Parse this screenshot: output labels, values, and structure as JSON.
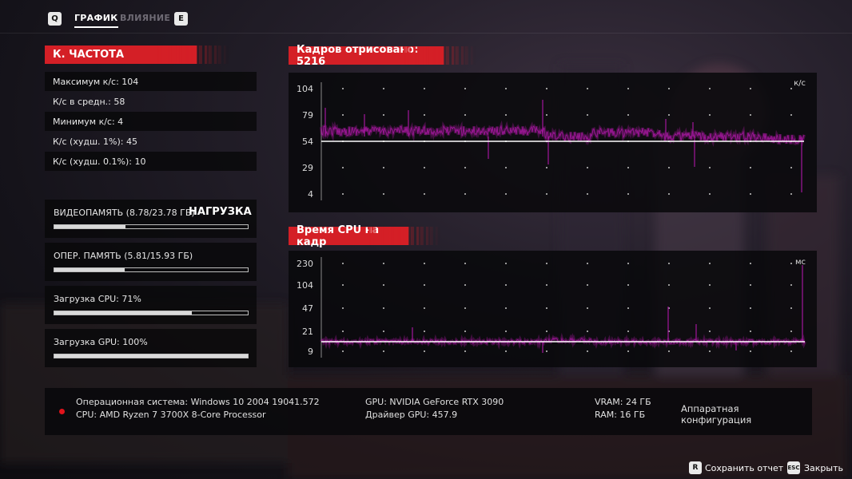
{
  "tabs": {
    "left_key": "Q",
    "items": [
      "ГРАФИК",
      "ВЛИЯНИЕ"
    ],
    "right_key": "E"
  },
  "fps_panel": {
    "title": "К. ЧАСТОТА",
    "stats": [
      "Максимум к/с: 104",
      "К/с в средн.: 58",
      "Минимум к/с: 4",
      "К/с (худш. 1%): 45",
      "К/с (худш. 0.1%): 10"
    ]
  },
  "load_panel": {
    "vram": {
      "label": "ВИДЕОПАМЯТЬ (8.78/23.78 ГБ)",
      "fraction": 0.369
    },
    "load_title": "НАГРУЗКА",
    "ram": {
      "label": "ОПЕР. ПАМЯТЬ (5.81/15.93 ГБ)",
      "fraction": 0.365
    },
    "cpu": {
      "label": "Загрузка CPU: 71%",
      "fraction": 0.71
    },
    "gpu": {
      "label": "Загрузка GPU: 100%",
      "fraction": 1.0
    }
  },
  "fps_chart": {
    "title": "Кадров отрисовано: 5216",
    "unit": "к/с",
    "ticks": [
      "104",
      "79",
      "54",
      "29",
      "4"
    ]
  },
  "cpu_chart": {
    "title": "Время CPU на кадр",
    "unit": "мс",
    "ticks": [
      "230",
      "104",
      "47",
      "21",
      "9"
    ]
  },
  "system_info": {
    "os": "Операционная система: Windows 10 2004 19041.572",
    "cpu": "CPU: AMD Ryzen 7 3700X 8-Core Processor",
    "gpu": "GPU: NVIDIA GeForce RTX 3090",
    "driver": "Драйвер GPU: 457.9",
    "vram": "VRAM: 24 ГБ",
    "ram": "RAM: 16 ГБ",
    "config_label": "Аппаратная конфигурация"
  },
  "footer": {
    "save_key": "R",
    "save_label": "Сохранить отчет",
    "close_key": "ESC",
    "close_label": "Закрыть"
  },
  "colors": {
    "accent_red": "#d41f26",
    "plot_magenta": "#a2179c",
    "avg_line": "#ffffff"
  }
}
